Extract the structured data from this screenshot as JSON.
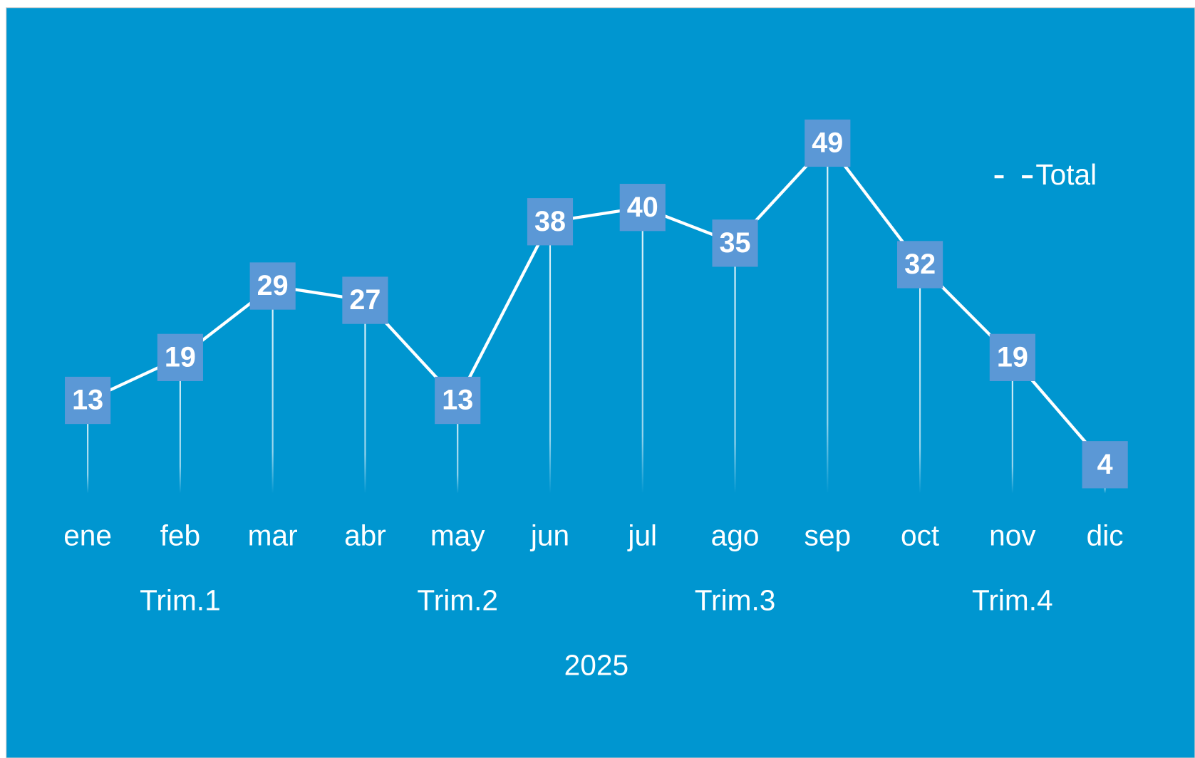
{
  "chart_data": {
    "type": "line",
    "categories": [
      "ene",
      "feb",
      "mar",
      "abr",
      "may",
      "jun",
      "jul",
      "ago",
      "sep",
      "oct",
      "nov",
      "dic"
    ],
    "quarters": [
      "Trim.1",
      "Trim.2",
      "Trim.3",
      "Trim.4"
    ],
    "year": "2025",
    "series": [
      {
        "name": "Total",
        "color": "#ffffff",
        "values": [
          13,
          19,
          29,
          27,
          13,
          38,
          40,
          35,
          49,
          32,
          19,
          4
        ]
      }
    ],
    "ylim": [
      0,
      50
    ],
    "legend": "top-right",
    "background": "#0096d0",
    "label_box_color": "#5b98d6"
  }
}
